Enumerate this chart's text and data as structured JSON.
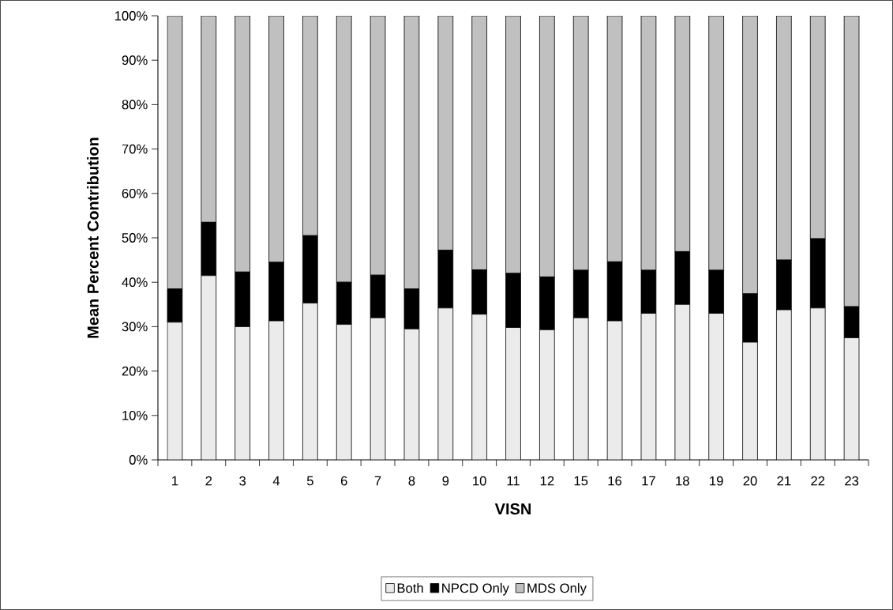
{
  "chart_data": {
    "type": "bar",
    "stacked": true,
    "xlabel": "VISN",
    "ylabel": "Mean Percent Contribution",
    "categories": [
      "1",
      "2",
      "3",
      "4",
      "5",
      "6",
      "7",
      "8",
      "9",
      "10",
      "11",
      "12",
      "15",
      "16",
      "17",
      "18",
      "19",
      "20",
      "21",
      "22",
      "23"
    ],
    "series": [
      {
        "name": "Both",
        "color": "#ebebeb",
        "values": [
          31,
          41.5,
          30,
          31.3,
          35.3,
          30.5,
          32,
          29.5,
          34.2,
          32.8,
          29.8,
          29.3,
          32,
          31.3,
          33,
          35,
          33,
          26.5,
          33.8,
          34.2,
          27.5
        ]
      },
      {
        "name": "NPCD Only",
        "color": "#000000",
        "values": [
          7.5,
          12,
          12.3,
          13.2,
          15.2,
          9.5,
          9.6,
          9,
          13,
          10,
          12.2,
          11.9,
          10.7,
          13.3,
          9.7,
          11.9,
          9.7,
          10.9,
          11.2,
          15.6,
          7
        ]
      },
      {
        "name": "MDS Only",
        "color": "#c0c0c0",
        "values": [
          61.5,
          46.5,
          57.7,
          55.5,
          49.5,
          60,
          58.4,
          61.5,
          52.8,
          57.2,
          58,
          58.8,
          57.3,
          55.4,
          57.3,
          53.1,
          57.3,
          62.6,
          55,
          50.2,
          65.5
        ]
      }
    ],
    "ylim": [
      0,
      100
    ],
    "yticks": [
      {
        "value": 0,
        "label": "0%"
      },
      {
        "value": 10,
        "label": "10%"
      },
      {
        "value": 20,
        "label": "20%"
      },
      {
        "value": 30,
        "label": "30%"
      },
      {
        "value": 40,
        "label": "40%"
      },
      {
        "value": 50,
        "label": "50%"
      },
      {
        "value": 60,
        "label": "60%"
      },
      {
        "value": 70,
        "label": "70%"
      },
      {
        "value": 80,
        "label": "80%"
      },
      {
        "value": 90,
        "label": "90%"
      },
      {
        "value": 100,
        "label": "100%"
      }
    ],
    "grid": false,
    "legend": "bottom"
  }
}
